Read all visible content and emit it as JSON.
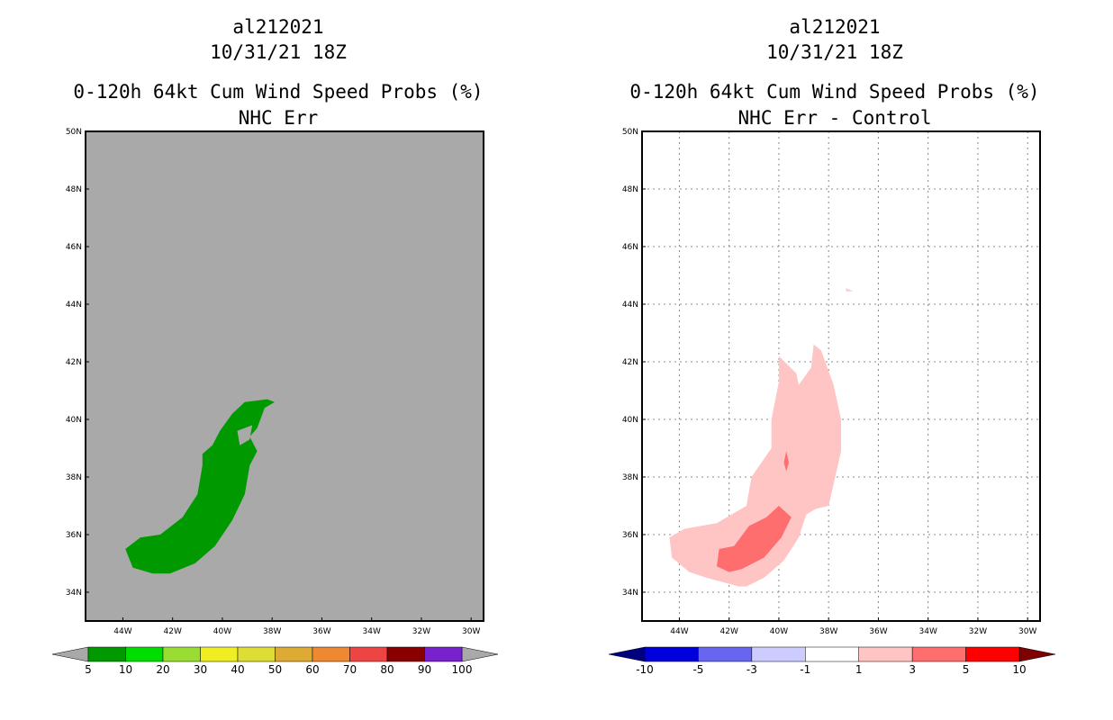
{
  "chart_data": [
    {
      "type": "contour-map",
      "storm_id": "al212021",
      "time": "10/31/21 18Z",
      "title": "0-120h 64kt Cum Wind Speed Probs (%)",
      "subtitle": "NHC Err",
      "lat_ticks": [
        "34N",
        "36N",
        "38N",
        "40N",
        "42N",
        "44N",
        "46N",
        "48N",
        "50N"
      ],
      "lon_ticks": [
        "44W",
        "42W",
        "40W",
        "38W",
        "36W",
        "34W",
        "32W",
        "30W"
      ],
      "lat_range": [
        33,
        50
      ],
      "lon_range": [
        -45.5,
        -29.5
      ],
      "background_color": "#a9a9a9",
      "grid": false,
      "colorbar": {
        "labels": [
          "5",
          "10",
          "20",
          "30",
          "40",
          "50",
          "60",
          "70",
          "80",
          "90",
          "100"
        ],
        "colors": [
          "#009900",
          "#00dd00",
          "#99dd33",
          "#eeee22",
          "#dddd33",
          "#ddaa33",
          "#ee8833",
          "#ee4444",
          "#880000",
          "#7722cc"
        ]
      },
      "contours": [
        {
          "level": "5-10",
          "color": "#009900",
          "points": [
            [
              -43.9,
              35.5
            ],
            [
              -43.3,
              35.9
            ],
            [
              -42.5,
              36.0
            ],
            [
              -41.6,
              36.6
            ],
            [
              -41.0,
              37.4
            ],
            [
              -40.8,
              38.4
            ],
            [
              -40.8,
              38.8
            ],
            [
              -40.4,
              39.1
            ],
            [
              -40.1,
              39.6
            ],
            [
              -39.6,
              40.2
            ],
            [
              -39.1,
              40.6
            ],
            [
              -38.2,
              40.7
            ],
            [
              -37.9,
              40.6
            ],
            [
              -38.3,
              40.4
            ],
            [
              -38.6,
              39.7
            ],
            [
              -38.9,
              39.4
            ],
            [
              -38.6,
              38.9
            ],
            [
              -38.9,
              38.4
            ],
            [
              -39.1,
              37.4
            ],
            [
              -39.6,
              36.5
            ],
            [
              -40.3,
              35.6
            ],
            [
              -41.1,
              35.0
            ],
            [
              -42.1,
              34.65
            ],
            [
              -42.8,
              34.65
            ],
            [
              -43.6,
              34.85
            ],
            [
              -43.9,
              35.5
            ]
          ]
        },
        {
          "level": "hole",
          "color": "#a9a9a9",
          "points": [
            [
              -39.4,
              39.6
            ],
            [
              -38.8,
              39.8
            ],
            [
              -38.9,
              39.3
            ],
            [
              -39.3,
              39.1
            ]
          ]
        }
      ]
    },
    {
      "type": "contour-map",
      "storm_id": "al212021",
      "time": "10/31/21 18Z",
      "title": "0-120h 64kt Cum Wind Speed Probs (%)",
      "subtitle": "NHC Err - Control",
      "lat_ticks": [
        "34N",
        "36N",
        "38N",
        "40N",
        "42N",
        "44N",
        "46N",
        "48N",
        "50N"
      ],
      "lon_ticks": [
        "44W",
        "42W",
        "40W",
        "38W",
        "36W",
        "34W",
        "32W",
        "30W"
      ],
      "lat_range": [
        33,
        50
      ],
      "lon_range": [
        -45.5,
        -29.5
      ],
      "background_color": "#ffffff",
      "grid": true,
      "colorbar": {
        "labels": [
          "-10",
          "-5",
          "-3",
          "-1",
          "1",
          "3",
          "5",
          "10"
        ],
        "colors": [
          "#0000dd",
          "#6666ee",
          "#ccccff",
          "#ffffff",
          "#ffc4c4",
          "#ff6e6e",
          "#ff0000"
        ],
        "end_colors": [
          "#00007f",
          "#7f0000"
        ]
      },
      "contours": [
        {
          "level": "1-3",
          "color": "#ffc4c4",
          "points": [
            [
              -44.4,
              35.9
            ],
            [
              -43.8,
              36.2
            ],
            [
              -42.5,
              36.4
            ],
            [
              -41.3,
              37.0
            ],
            [
              -41.1,
              38.0
            ],
            [
              -40.3,
              39.0
            ],
            [
              -40.3,
              40.0
            ],
            [
              -40.0,
              41.3
            ],
            [
              -40.0,
              42.2
            ],
            [
              -39.3,
              41.6
            ],
            [
              -39.2,
              41.2
            ],
            [
              -38.7,
              41.8
            ],
            [
              -38.6,
              42.6
            ],
            [
              -38.3,
              42.4
            ],
            [
              -37.8,
              41.2
            ],
            [
              -37.5,
              40.0
            ],
            [
              -37.5,
              38.9
            ],
            [
              -38.0,
              37.0
            ],
            [
              -38.5,
              36.9
            ],
            [
              -38.9,
              36.7
            ],
            [
              -39.2,
              35.9
            ],
            [
              -39.8,
              35.1
            ],
            [
              -40.6,
              34.5
            ],
            [
              -41.3,
              34.2
            ],
            [
              -41.6,
              34.2
            ],
            [
              -42.9,
              34.5
            ],
            [
              -43.6,
              34.7
            ],
            [
              -44.3,
              35.2
            ],
            [
              -44.4,
              35.9
            ]
          ]
        },
        {
          "level": "1-3",
          "color": "#ffc4c4",
          "points": [
            [
              -37.3,
              44.55
            ],
            [
              -37.0,
              44.45
            ],
            [
              -37.3,
              44.45
            ]
          ]
        },
        {
          "level": "3-5",
          "color": "#ff6e6e",
          "points": [
            [
              -42.5,
              34.9
            ],
            [
              -42.4,
              35.5
            ],
            [
              -41.8,
              35.6
            ],
            [
              -41.2,
              36.3
            ],
            [
              -40.5,
              36.6
            ],
            [
              -40.0,
              37.0
            ],
            [
              -39.5,
              36.6
            ],
            [
              -39.9,
              35.9
            ],
            [
              -40.6,
              35.2
            ],
            [
              -41.5,
              34.8
            ],
            [
              -42.0,
              34.7
            ],
            [
              -42.5,
              34.9
            ]
          ]
        },
        {
          "level": "3-5",
          "color": "#ff6e6e",
          "points": [
            [
              -39.7,
              38.9
            ],
            [
              -39.6,
              38.5
            ],
            [
              -39.7,
              38.2
            ],
            [
              -39.8,
              38.5
            ]
          ]
        }
      ]
    }
  ]
}
